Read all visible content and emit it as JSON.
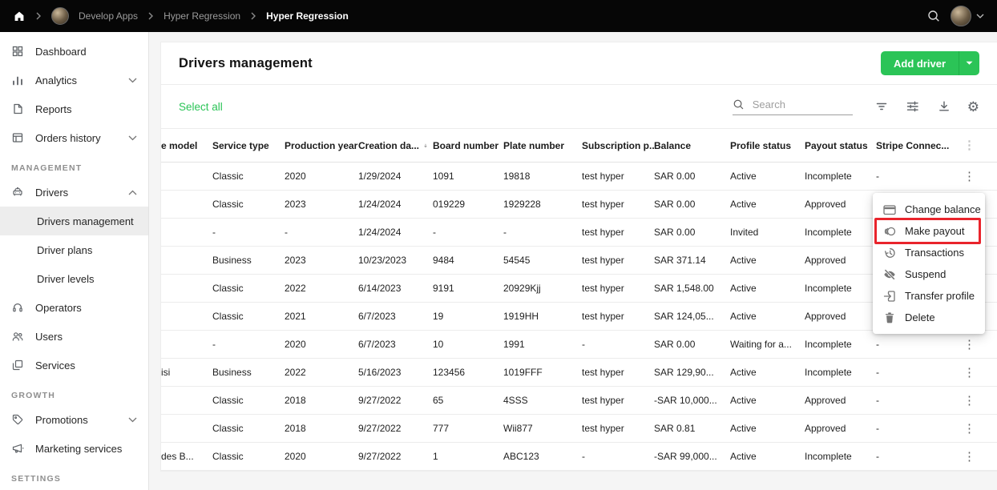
{
  "topbar": {
    "breadcrumbs": [
      {
        "label": "Develop Apps",
        "active": false
      },
      {
        "label": "Hyper Regression",
        "active": false
      },
      {
        "label": "Hyper Regression",
        "active": true
      }
    ]
  },
  "sidebar": {
    "items": [
      {
        "label": "Dashboard"
      },
      {
        "label": "Analytics",
        "chevron": "down"
      },
      {
        "label": "Reports"
      },
      {
        "label": "Orders history",
        "chevron": "down"
      },
      {
        "section": "MANAGEMENT"
      },
      {
        "label": "Drivers",
        "chevron": "up"
      },
      {
        "label": "Drivers management",
        "sub": true,
        "active": true
      },
      {
        "label": "Driver plans",
        "sub": true
      },
      {
        "label": "Driver levels",
        "sub": true
      },
      {
        "label": "Operators"
      },
      {
        "label": "Users"
      },
      {
        "label": "Services"
      },
      {
        "section": "GROWTH"
      },
      {
        "label": "Promotions",
        "chevron": "down"
      },
      {
        "label": "Marketing services"
      },
      {
        "section": "SETTINGS"
      }
    ]
  },
  "main": {
    "title": "Drivers management",
    "add_driver": "Add driver",
    "select_all": "Select all",
    "search_placeholder": "Search",
    "table": {
      "columns": [
        "e model",
        "Service type",
        "Production year",
        "Creation da...",
        "Board number",
        "Plate number",
        "Subscription p...",
        "Balance",
        "Profile status",
        "Payout status",
        "Stripe Connec...",
        ""
      ],
      "sort_column_index": 3,
      "rows": [
        {
          "cells": [
            "",
            "Classic",
            "2020",
            "1/29/2024",
            "1091",
            "19818",
            "test hyper",
            "SAR 0.00",
            "Active",
            "Incomplete",
            "-"
          ],
          "kebab": true
        },
        {
          "cells": [
            "",
            "Classic",
            "2023",
            "1/24/2024",
            "019229",
            "1929228",
            "test hyper",
            "SAR 0.00",
            "Active",
            "Approved",
            ""
          ],
          "kebab": false
        },
        {
          "cells": [
            "",
            "-",
            "-",
            "1/24/2024",
            "-",
            "-",
            "test hyper",
            "SAR 0.00",
            "Invited",
            "Incomplete",
            ""
          ],
          "kebab": false
        },
        {
          "cells": [
            "",
            "Business",
            "2023",
            "10/23/2023",
            "9484",
            "54545",
            "test hyper",
            "SAR 371.14",
            "Active",
            "Approved",
            ""
          ],
          "kebab": false
        },
        {
          "cells": [
            "",
            "Classic",
            "2022",
            "6/14/2023",
            "9191",
            "20929Kjj",
            "test hyper",
            "SAR 1,548.00",
            "Active",
            "Incomplete",
            ""
          ],
          "kebab": false
        },
        {
          "cells": [
            "",
            "Classic",
            "2021",
            "6/7/2023",
            "19",
            "1919HH",
            "test hyper",
            "SAR 124,05...",
            "Active",
            "Approved",
            ""
          ],
          "kebab": false
        },
        {
          "cells": [
            "",
            "-",
            "2020",
            "6/7/2023",
            "10",
            "1991",
            "-",
            "SAR 0.00",
            "Waiting for a...",
            "Incomplete",
            "-"
          ],
          "kebab": true
        },
        {
          "cells": [
            "isi",
            "Business",
            "2022",
            "5/16/2023",
            "123456",
            "1019FFF",
            "test hyper",
            "SAR 129,90...",
            "Active",
            "Incomplete",
            "-"
          ],
          "kebab": true
        },
        {
          "cells": [
            "",
            "Classic",
            "2018",
            "9/27/2022",
            "65",
            "4SSS",
            "test hyper",
            "-SAR 10,000...",
            "Active",
            "Approved",
            "-"
          ],
          "kebab": true
        },
        {
          "cells": [
            "",
            "Classic",
            "2018",
            "9/27/2022",
            "777",
            "Wii877",
            "test hyper",
            "SAR 0.81",
            "Active",
            "Approved",
            "-"
          ],
          "kebab": true
        },
        {
          "cells": [
            "des B...",
            "Classic",
            "2020",
            "9/27/2022",
            "1",
            "ABC123",
            "-",
            "-SAR 99,000...",
            "Active",
            "Incomplete",
            "-"
          ],
          "kebab": true
        }
      ]
    },
    "context_menu": {
      "items": [
        {
          "label": "Change balance",
          "icon": "card"
        },
        {
          "label": "Make payout",
          "icon": "payout",
          "highlighted": true
        },
        {
          "label": "Transactions",
          "icon": "history"
        },
        {
          "label": "Suspend",
          "icon": "eye-off"
        },
        {
          "label": "Transfer profile",
          "icon": "transfer"
        },
        {
          "label": "Delete",
          "icon": "trash"
        }
      ]
    }
  },
  "colors": {
    "accent_green": "#2bc457",
    "highlight_red": "#e9242c",
    "topbar_bg": "#060606"
  }
}
